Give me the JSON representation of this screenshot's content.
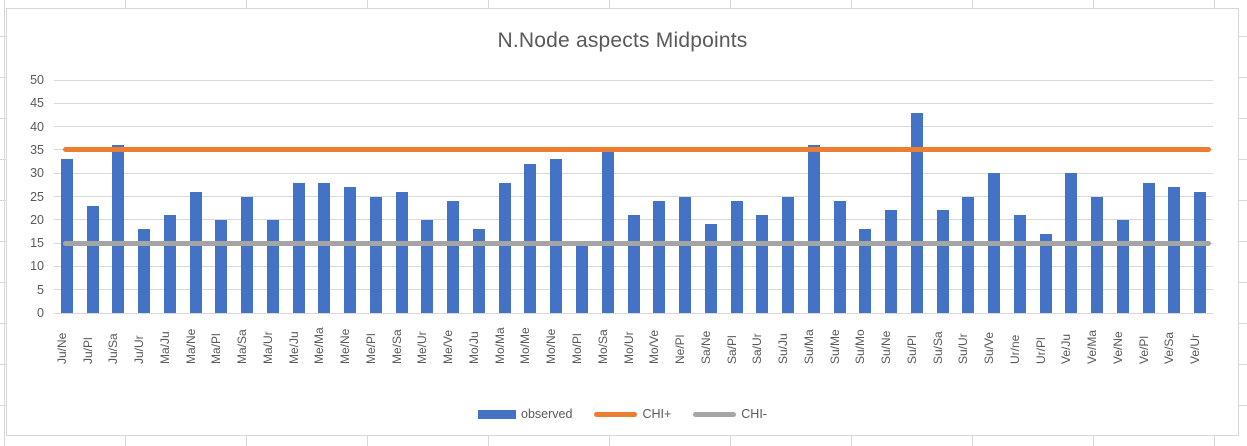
{
  "chart_data": {
    "type": "bar",
    "title": "N.Node aspects Midpoints",
    "categories": [
      "Ju/Ne",
      "Ju/Pl",
      "Ju/Sa",
      "Ju/Ur",
      "Ma/Ju",
      "Ma/Ne",
      "Ma/Pl",
      "Ma/Sa",
      "Ma/Ur",
      "Me/Ju",
      "Me/Ma",
      "Me/Ne",
      "Me/Pl",
      "Me/Sa",
      "Me/Ur",
      "Me/Ve",
      "Mo/Ju",
      "Mo/Ma",
      "Mo/Me",
      "Mo/Ne",
      "Mo/Pl",
      "Mo/Sa",
      "Mo/Ur",
      "Mo/Ve",
      "Ne/Pl",
      "Sa/Ne",
      "Sa/Pl",
      "Sa/Ur",
      "Su/Ju",
      "Su/Ma",
      "Su/Me",
      "Su/Mo",
      "Su/Ne",
      "Su/Pl",
      "Su/Sa",
      "Su/Ur",
      "Su/Ve",
      "Ur/ne",
      "Ur/Pl",
      "Ve/Ju",
      "Ve/Ma",
      "Ve/Ne",
      "Ve/Pl",
      "Ve/Sa",
      "Ve/Ur"
    ],
    "series": [
      {
        "name": "observed",
        "kind": "bar",
        "color": "#4472c4",
        "values": [
          33,
          23,
          36,
          18,
          21,
          26,
          20,
          25,
          20,
          28,
          28,
          27,
          25,
          26,
          20,
          24,
          18,
          28,
          32,
          33,
          15,
          35,
          21,
          24,
          25,
          19,
          24,
          21,
          25,
          36,
          24,
          18,
          22,
          43,
          22,
          25,
          30,
          21,
          17,
          30,
          25,
          20,
          28,
          27,
          26
        ]
      },
      {
        "name": "CHI+",
        "kind": "hline",
        "color": "#ed7d31",
        "value": 35
      },
      {
        "name": "CHI-",
        "kind": "hline",
        "color": "#a5a5a5",
        "value": 15
      }
    ],
    "xlabel": "",
    "ylabel": "",
    "ylim": [
      0,
      50
    ],
    "ytick_step": 5,
    "ytick_labels": [
      "0",
      "5",
      "10",
      "15",
      "20",
      "25",
      "30",
      "35",
      "40",
      "45",
      "50"
    ],
    "grid": true,
    "legend_position": "bottom",
    "colors": {
      "bar": "#4472c4",
      "chi_plus_line": "#ed7d31",
      "chi_minus_line": "#a5a5a5",
      "text": "#595959",
      "gridline": "#d9d9d9"
    }
  }
}
